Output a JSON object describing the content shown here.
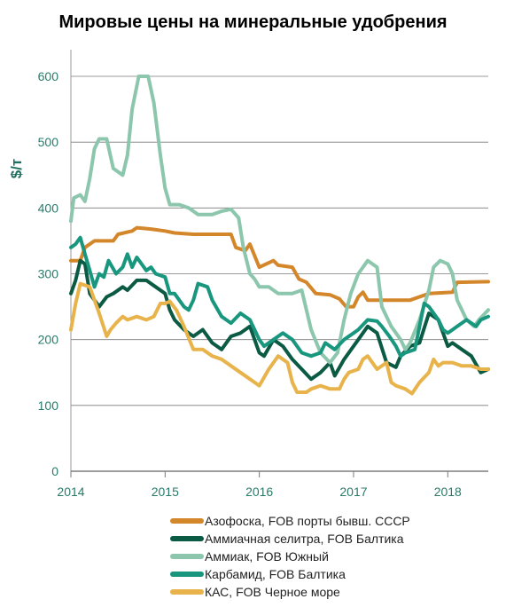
{
  "chart_data": {
    "type": "line",
    "title": "Мировые цены на минеральные удобрения",
    "ylabel": "$/т",
    "xlabel": "",
    "ylim": [
      0,
      600
    ],
    "xlim": [
      2014.0,
      2018.43
    ],
    "yticks": [
      0,
      100,
      200,
      300,
      400,
      500,
      600
    ],
    "xticks": [
      2014,
      2015,
      2016,
      2017,
      2018
    ],
    "xtick_labels": [
      "2014",
      "2015",
      "2016",
      "2017",
      "2018"
    ],
    "grid": "horizontal",
    "legend_position": "bottom",
    "series": [
      {
        "name": "Азофоска, FOB порты бывш. СССР",
        "color": "#d4862a",
        "points": [
          [
            2014.0,
            320
          ],
          [
            2014.1,
            320
          ],
          [
            2014.15,
            340
          ],
          [
            2014.25,
            350
          ],
          [
            2014.45,
            350
          ],
          [
            2014.5,
            360
          ],
          [
            2014.65,
            365
          ],
          [
            2014.7,
            370
          ],
          [
            2014.85,
            368
          ],
          [
            2015.0,
            365
          ],
          [
            2015.1,
            362
          ],
          [
            2015.3,
            360
          ],
          [
            2015.7,
            360
          ],
          [
            2015.75,
            340
          ],
          [
            2015.85,
            335
          ],
          [
            2015.9,
            345
          ],
          [
            2016.0,
            310
          ],
          [
            2016.15,
            320
          ],
          [
            2016.2,
            313
          ],
          [
            2016.35,
            310
          ],
          [
            2016.42,
            292
          ],
          [
            2016.5,
            287
          ],
          [
            2016.6,
            270
          ],
          [
            2016.75,
            268
          ],
          [
            2016.85,
            262
          ],
          [
            2016.92,
            250
          ],
          [
            2017.0,
            250
          ],
          [
            2017.05,
            265
          ],
          [
            2017.1,
            272
          ],
          [
            2017.15,
            260
          ],
          [
            2017.4,
            260
          ],
          [
            2017.6,
            260
          ],
          [
            2017.7,
            265
          ],
          [
            2017.8,
            270
          ],
          [
            2018.05,
            272
          ],
          [
            2018.1,
            287
          ],
          [
            2018.43,
            288
          ]
        ]
      },
      {
        "name": "Аммиачная селитра, FOB Балтика",
        "color": "#0b5a44",
        "points": [
          [
            2014.0,
            270
          ],
          [
            2014.05,
            290
          ],
          [
            2014.1,
            320
          ],
          [
            2014.15,
            315
          ],
          [
            2014.2,
            270
          ],
          [
            2014.3,
            250
          ],
          [
            2014.38,
            265
          ],
          [
            2014.45,
            270
          ],
          [
            2014.55,
            280
          ],
          [
            2014.6,
            275
          ],
          [
            2014.7,
            290
          ],
          [
            2014.8,
            290
          ],
          [
            2014.9,
            280
          ],
          [
            2015.0,
            270
          ],
          [
            2015.05,
            245
          ],
          [
            2015.1,
            230
          ],
          [
            2015.2,
            215
          ],
          [
            2015.3,
            205
          ],
          [
            2015.4,
            215
          ],
          [
            2015.5,
            195
          ],
          [
            2015.6,
            185
          ],
          [
            2015.7,
            205
          ],
          [
            2015.8,
            210
          ],
          [
            2015.9,
            220
          ],
          [
            2016.0,
            180
          ],
          [
            2016.05,
            175
          ],
          [
            2016.15,
            200
          ],
          [
            2016.25,
            190
          ],
          [
            2016.35,
            170
          ],
          [
            2016.45,
            155
          ],
          [
            2016.55,
            140
          ],
          [
            2016.65,
            150
          ],
          [
            2016.75,
            165
          ],
          [
            2016.8,
            145
          ],
          [
            2016.9,
            170
          ],
          [
            2017.0,
            190
          ],
          [
            2017.05,
            200
          ],
          [
            2017.15,
            220
          ],
          [
            2017.25,
            210
          ],
          [
            2017.35,
            165
          ],
          [
            2017.45,
            158
          ],
          [
            2017.5,
            175
          ],
          [
            2017.6,
            190
          ],
          [
            2017.7,
            195
          ],
          [
            2017.8,
            240
          ],
          [
            2017.9,
            230
          ],
          [
            2018.0,
            190
          ],
          [
            2018.05,
            195
          ],
          [
            2018.15,
            185
          ],
          [
            2018.25,
            175
          ],
          [
            2018.35,
            150
          ],
          [
            2018.43,
            155
          ]
        ]
      },
      {
        "name": "Аммиак, FOB Южный",
        "color": "#8cc7ad",
        "points": [
          [
            2014.0,
            380
          ],
          [
            2014.03,
            415
          ],
          [
            2014.1,
            420
          ],
          [
            2014.15,
            410
          ],
          [
            2014.2,
            445
          ],
          [
            2014.25,
            490
          ],
          [
            2014.3,
            505
          ],
          [
            2014.38,
            505
          ],
          [
            2014.45,
            460
          ],
          [
            2014.55,
            450
          ],
          [
            2014.6,
            480
          ],
          [
            2014.65,
            550
          ],
          [
            2014.72,
            600
          ],
          [
            2014.82,
            600
          ],
          [
            2014.88,
            560
          ],
          [
            2014.95,
            480
          ],
          [
            2015.0,
            430
          ],
          [
            2015.05,
            405
          ],
          [
            2015.15,
            405
          ],
          [
            2015.25,
            400
          ],
          [
            2015.35,
            390
          ],
          [
            2015.5,
            390
          ],
          [
            2015.6,
            395
          ],
          [
            2015.7,
            398
          ],
          [
            2015.78,
            385
          ],
          [
            2015.83,
            340
          ],
          [
            2015.9,
            300
          ],
          [
            2015.95,
            292
          ],
          [
            2016.0,
            280
          ],
          [
            2016.1,
            280
          ],
          [
            2016.2,
            270
          ],
          [
            2016.35,
            270
          ],
          [
            2016.45,
            275
          ],
          [
            2016.55,
            215
          ],
          [
            2016.65,
            180
          ],
          [
            2016.75,
            165
          ],
          [
            2016.83,
            180
          ],
          [
            2016.9,
            230
          ],
          [
            2016.97,
            270
          ],
          [
            2017.05,
            300
          ],
          [
            2017.15,
            320
          ],
          [
            2017.25,
            310
          ],
          [
            2017.3,
            250
          ],
          [
            2017.4,
            220
          ],
          [
            2017.5,
            200
          ],
          [
            2017.55,
            185
          ],
          [
            2017.6,
            195
          ],
          [
            2017.7,
            230
          ],
          [
            2017.8,
            275
          ],
          [
            2017.85,
            310
          ],
          [
            2017.92,
            320
          ],
          [
            2018.0,
            315
          ],
          [
            2018.05,
            300
          ],
          [
            2018.1,
            260
          ],
          [
            2018.2,
            230
          ],
          [
            2018.28,
            220
          ],
          [
            2018.33,
            230
          ],
          [
            2018.43,
            245
          ]
        ]
      },
      {
        "name": "Карбамид, FOB Балтика",
        "color": "#18977e",
        "points": [
          [
            2014.0,
            340
          ],
          [
            2014.05,
            345
          ],
          [
            2014.1,
            355
          ],
          [
            2014.15,
            330
          ],
          [
            2014.2,
            305
          ],
          [
            2014.25,
            280
          ],
          [
            2014.3,
            300
          ],
          [
            2014.35,
            295
          ],
          [
            2014.4,
            320
          ],
          [
            2014.48,
            300
          ],
          [
            2014.55,
            310
          ],
          [
            2014.6,
            330
          ],
          [
            2014.65,
            310
          ],
          [
            2014.7,
            325
          ],
          [
            2014.8,
            305
          ],
          [
            2014.85,
            310
          ],
          [
            2014.9,
            300
          ],
          [
            2015.0,
            295
          ],
          [
            2015.05,
            270
          ],
          [
            2015.1,
            270
          ],
          [
            2015.2,
            250
          ],
          [
            2015.25,
            245
          ],
          [
            2015.3,
            260
          ],
          [
            2015.35,
            285
          ],
          [
            2015.45,
            280
          ],
          [
            2015.5,
            260
          ],
          [
            2015.6,
            235
          ],
          [
            2015.7,
            225
          ],
          [
            2015.8,
            240
          ],
          [
            2015.9,
            230
          ],
          [
            2016.0,
            200
          ],
          [
            2016.05,
            190
          ],
          [
            2016.15,
            200
          ],
          [
            2016.25,
            210
          ],
          [
            2016.35,
            200
          ],
          [
            2016.45,
            180
          ],
          [
            2016.55,
            175
          ],
          [
            2016.65,
            180
          ],
          [
            2016.7,
            195
          ],
          [
            2016.8,
            185
          ],
          [
            2016.9,
            200
          ],
          [
            2017.0,
            210
          ],
          [
            2017.05,
            215
          ],
          [
            2017.15,
            230
          ],
          [
            2017.25,
            228
          ],
          [
            2017.3,
            220
          ],
          [
            2017.38,
            205
          ],
          [
            2017.45,
            190
          ],
          [
            2017.5,
            175
          ],
          [
            2017.55,
            180
          ],
          [
            2017.65,
            185
          ],
          [
            2017.75,
            255
          ],
          [
            2017.8,
            250
          ],
          [
            2017.9,
            230
          ],
          [
            2017.95,
            215
          ],
          [
            2018.0,
            210
          ],
          [
            2018.1,
            220
          ],
          [
            2018.2,
            230
          ],
          [
            2018.3,
            220
          ],
          [
            2018.35,
            230
          ],
          [
            2018.43,
            235
          ]
        ]
      },
      {
        "name": "КАС, FOB Черное море",
        "color": "#e8b34a",
        "points": [
          [
            2014.0,
            215
          ],
          [
            2014.05,
            255
          ],
          [
            2014.1,
            285
          ],
          [
            2014.2,
            280
          ],
          [
            2014.25,
            260
          ],
          [
            2014.3,
            240
          ],
          [
            2014.38,
            205
          ],
          [
            2014.42,
            215
          ],
          [
            2014.48,
            225
          ],
          [
            2014.55,
            235
          ],
          [
            2014.6,
            230
          ],
          [
            2014.7,
            235
          ],
          [
            2014.8,
            230
          ],
          [
            2014.88,
            235
          ],
          [
            2014.95,
            255
          ],
          [
            2015.0,
            255
          ],
          [
            2015.05,
            258
          ],
          [
            2015.12,
            245
          ],
          [
            2015.2,
            220
          ],
          [
            2015.3,
            185
          ],
          [
            2015.4,
            185
          ],
          [
            2015.5,
            175
          ],
          [
            2015.6,
            170
          ],
          [
            2015.7,
            160
          ],
          [
            2015.8,
            150
          ],
          [
            2015.9,
            140
          ],
          [
            2016.0,
            130
          ],
          [
            2016.1,
            155
          ],
          [
            2016.2,
            175
          ],
          [
            2016.3,
            165
          ],
          [
            2016.35,
            135
          ],
          [
            2016.4,
            120
          ],
          [
            2016.5,
            120
          ],
          [
            2016.55,
            125
          ],
          [
            2016.65,
            130
          ],
          [
            2016.75,
            125
          ],
          [
            2016.85,
            125
          ],
          [
            2016.9,
            140
          ],
          [
            2016.95,
            150
          ],
          [
            2017.05,
            155
          ],
          [
            2017.1,
            170
          ],
          [
            2017.15,
            175
          ],
          [
            2017.25,
            155
          ],
          [
            2017.35,
            165
          ],
          [
            2017.4,
            135
          ],
          [
            2017.45,
            130
          ],
          [
            2017.55,
            125
          ],
          [
            2017.62,
            118
          ],
          [
            2017.7,
            135
          ],
          [
            2017.8,
            150
          ],
          [
            2017.85,
            170
          ],
          [
            2017.9,
            160
          ],
          [
            2017.95,
            165
          ],
          [
            2018.05,
            165
          ],
          [
            2018.15,
            160
          ],
          [
            2018.25,
            160
          ],
          [
            2018.35,
            155
          ],
          [
            2018.43,
            155
          ]
        ]
      }
    ]
  }
}
